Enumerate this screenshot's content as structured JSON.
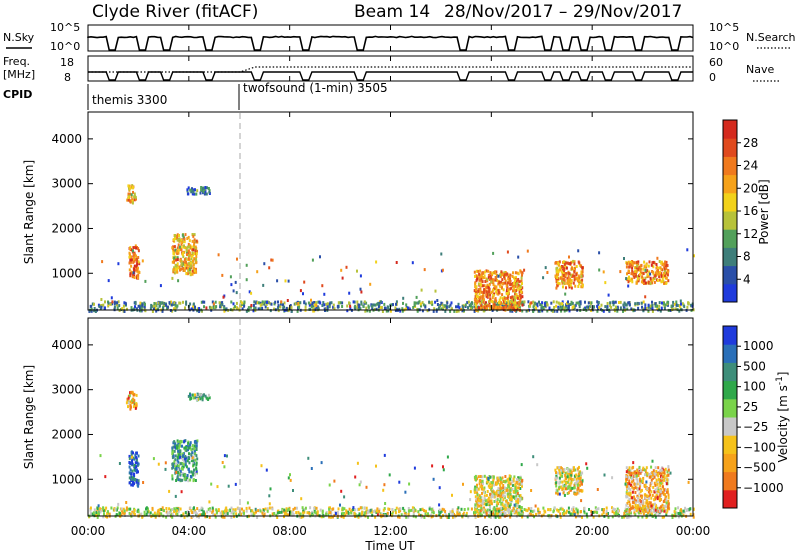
{
  "header": {
    "station": "Clyde River (fitACF)",
    "beam": "Beam 14",
    "date_range": "28/Nov/2017 – 29/Nov/2017"
  },
  "nsky_panel": {
    "left_label": "N.Sky",
    "right_label": "N.Search",
    "left_ticks": [
      "10^5",
      "10^0"
    ],
    "right_ticks": [
      "10^5",
      "10^0"
    ]
  },
  "freq_panel": {
    "left_label_line1": "Freq.",
    "left_label_line2": "[MHz]",
    "right_label": "Nave",
    "left_ticks": [
      "18",
      "8"
    ],
    "right_ticks": [
      "60",
      "0"
    ]
  },
  "cpid": {
    "label": "CPID",
    "programs": [
      {
        "name": "themis 3300",
        "start_hour": 0
      },
      {
        "name": "twofsound (1-min) 3505",
        "start_hour": 6
      }
    ]
  },
  "x_axis": {
    "title": "Time UT",
    "ticks": [
      "00:00",
      "04:00",
      "08:00",
      "12:00",
      "16:00",
      "20:00",
      "00:00"
    ]
  },
  "chart_data": [
    {
      "type": "heatmap",
      "name": "power",
      "ylabel": "Slant Range [km]",
      "yticks": [
        "1000",
        "2000",
        "3000",
        "4000"
      ],
      "xlim_hours": [
        0,
        24
      ],
      "ylim_km": [
        180,
        4600
      ],
      "colorbar": {
        "label": "Power [dB]",
        "ticks": [
          "4",
          "8",
          "12",
          "16",
          "20",
          "24",
          "28"
        ],
        "colors": [
          "#1f3bdc",
          "#2a4fa8",
          "#3e7e7a",
          "#52a05a",
          "#b7c23a",
          "#f2d21a",
          "#f6a21a",
          "#f07a1e",
          "#e04a1e",
          "#d42a1e"
        ]
      },
      "features": [
        {
          "t": [
            0,
            24
          ],
          "r": [
            180,
            400
          ],
          "level": 0.3
        },
        {
          "t": [
            1.6,
            2.0
          ],
          "r": [
            900,
            1650
          ],
          "level": 0.8
        },
        {
          "t": [
            1.5,
            1.9
          ],
          "r": [
            2600,
            3000
          ],
          "level": 0.6
        },
        {
          "t": [
            3.3,
            4.3
          ],
          "r": [
            1000,
            1900
          ],
          "level": 0.6
        },
        {
          "t": [
            3.9,
            4.8
          ],
          "r": [
            2800,
            2950
          ],
          "level": 0.2
        },
        {
          "t": [
            15.3,
            17.2
          ],
          "r": [
            200,
            1100
          ],
          "level": 0.7
        },
        {
          "t": [
            18.5,
            19.6
          ],
          "r": [
            700,
            1300
          ],
          "level": 0.7
        },
        {
          "t": [
            21.3,
            23.0
          ],
          "r": [
            800,
            1300
          ],
          "level": 0.7
        }
      ]
    },
    {
      "type": "heatmap",
      "name": "velocity",
      "ylabel": "Slant Range [km]",
      "yticks": [
        "1000",
        "2000",
        "3000",
        "4000"
      ],
      "xlim_hours": [
        0,
        24
      ],
      "ylim_km": [
        180,
        4600
      ],
      "colorbar": {
        "label": "Velocity [m s^-1]",
        "ticks": [
          "1000",
          "500",
          "100",
          "25",
          "-25",
          "-100",
          "-500",
          "-1000"
        ],
        "colors": [
          "#1f3bdc",
          "#2a6fb8",
          "#3e8e7a",
          "#2fa84a",
          "#7ad34a",
          "#c8c8c8",
          "#f5c21a",
          "#f6a21a",
          "#f07a1e",
          "#e02020"
        ]
      },
      "features": [
        {
          "t": [
            0,
            24
          ],
          "r": [
            180,
            400
          ],
          "level": 0.55
        },
        {
          "t": [
            1.6,
            2.0
          ],
          "r": [
            900,
            1650
          ],
          "level": 0.1
        },
        {
          "t": [
            1.5,
            1.9
          ],
          "r": [
            2600,
            3000
          ],
          "level": 0.7
        },
        {
          "t": [
            3.3,
            4.3
          ],
          "r": [
            1000,
            1900
          ],
          "level": 0.3
        },
        {
          "t": [
            3.9,
            4.8
          ],
          "r": [
            2800,
            2950
          ],
          "level": 0.4
        },
        {
          "t": [
            15.3,
            17.2
          ],
          "r": [
            200,
            1100
          ],
          "level": 0.6
        },
        {
          "t": [
            18.5,
            19.6
          ],
          "r": [
            700,
            1300
          ],
          "level": 0.6
        },
        {
          "t": [
            21.3,
            23.0
          ],
          "r": [
            300,
            1300
          ],
          "level": 0.7
        }
      ]
    }
  ]
}
